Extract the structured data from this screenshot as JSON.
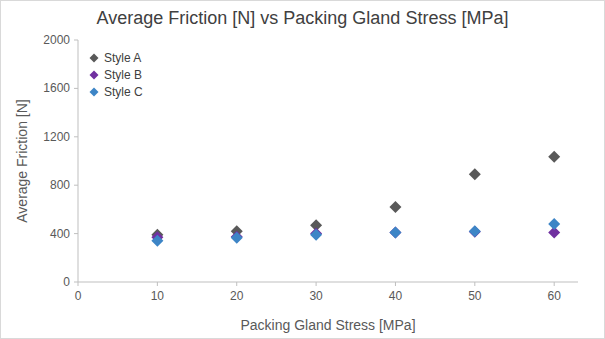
{
  "chart_data": {
    "type": "scatter",
    "title": "Average Friction [N] vs Packing Gland Stress [MPa]",
    "x_label": "Packing Gland Stress [MPa]",
    "y_label": "Average Friction [N]",
    "x": [
      10,
      20,
      30,
      40,
      50,
      60
    ],
    "series": [
      {
        "name": "Style A",
        "color": "#595959",
        "marker": "diamond",
        "values": [
          390,
          420,
          470,
          620,
          890,
          1035
        ]
      },
      {
        "name": "Style B",
        "color": "#7030a0",
        "marker": "diamond",
        "values": [
          370,
          375,
          400,
          410,
          415,
          410
        ]
      },
      {
        "name": "Style C",
        "color": "#3d85c6",
        "marker": "diamond",
        "values": [
          340,
          365,
          390,
          410,
          420,
          480
        ]
      }
    ],
    "xlim": [
      0,
      63
    ],
    "xticks": [
      0,
      10,
      20,
      30,
      40,
      50,
      60
    ],
    "ylim": [
      0,
      2000
    ],
    "yticks": [
      0,
      400,
      800,
      1200,
      1600,
      2000
    ],
    "grid": false,
    "legend": "upper-left"
  }
}
